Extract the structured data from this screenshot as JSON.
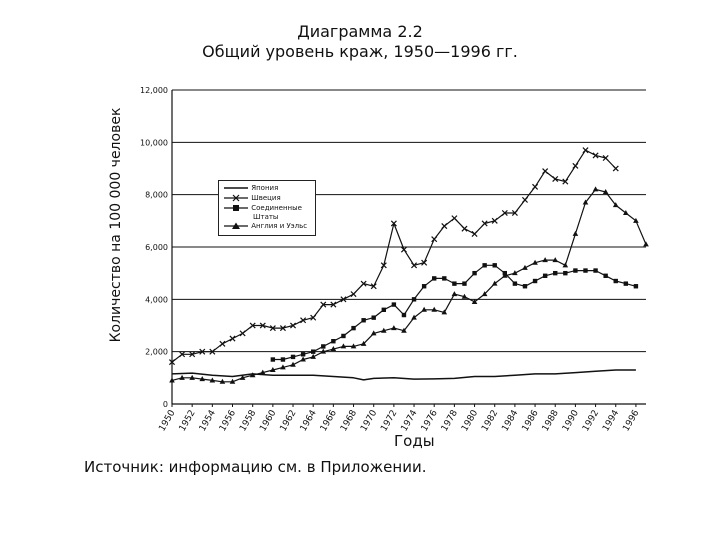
{
  "chart_data": {
    "type": "line",
    "title": "Диаграмма 2.2",
    "subtitle": "Общий уровень краж, 1950—1996 гг.",
    "xlabel": "Годы",
    "ylabel": "Количество на 100 000 человек",
    "ylim": [
      0,
      12000
    ],
    "xlim": [
      1950,
      1997
    ],
    "yticks": [
      "0",
      "2,000",
      "4,000",
      "6,000",
      "8,000",
      "10,000",
      "12,000"
    ],
    "ytick_values": [
      0,
      2000,
      4000,
      6000,
      8000,
      10000,
      12000
    ],
    "xticks": [
      "1950",
      "1952",
      "1954",
      "1956",
      "1958",
      "1960",
      "1962",
      "1964",
      "1966",
      "1968",
      "1970",
      "1972",
      "1974",
      "1976",
      "1978",
      "1980",
      "1982",
      "1984",
      "1986",
      "1988",
      "1990",
      "1992",
      "1994",
      "1996"
    ],
    "grid": "horizontal",
    "legend_position": "top-left",
    "series": [
      {
        "name": "Япония",
        "marker": "none",
        "x": [
          1950,
          1952,
          1954,
          1956,
          1958,
          1960,
          1962,
          1964,
          1966,
          1968,
          1969,
          1970,
          1972,
          1974,
          1976,
          1978,
          1980,
          1982,
          1984,
          1986,
          1988,
          1990,
          1992,
          1994,
          1996
        ],
        "y": [
          1150,
          1180,
          1100,
          1050,
          1150,
          1100,
          1100,
          1100,
          1050,
          1000,
          920,
          980,
          1000,
          950,
          960,
          980,
          1050,
          1050,
          1100,
          1150,
          1150,
          1200,
          1250,
          1300,
          1300
        ]
      },
      {
        "name": "Швеция",
        "marker": "x",
        "x": [
          1950,
          1951,
          1952,
          1953,
          1954,
          1955,
          1956,
          1957,
          1958,
          1959,
          1960,
          1961,
          1962,
          1963,
          1964,
          1965,
          1966,
          1967,
          1968,
          1969,
          1970,
          1971,
          1972,
          1973,
          1974,
          1975,
          1976,
          1977,
          1978,
          1979,
          1980,
          1981,
          1982,
          1983,
          1984,
          1985,
          1986,
          1987,
          1988,
          1989,
          1990,
          1991,
          1992,
          1993,
          1994
        ],
        "y": [
          1600,
          1900,
          1900,
          2000,
          2000,
          2300,
          2500,
          2700,
          3000,
          3000,
          2900,
          2900,
          3000,
          3200,
          3300,
          3800,
          3800,
          4000,
          4200,
          4600,
          4500,
          5300,
          6900,
          5900,
          5300,
          5400,
          6300,
          6800,
          7100,
          6700,
          6500,
          6900,
          7000,
          7300,
          7300,
          7800,
          8300,
          8900,
          8600,
          8500,
          9100,
          9700,
          9500,
          9400,
          9000
        ]
      },
      {
        "name": "Соединенные Штаты",
        "marker": "square",
        "x": [
          1960,
          1961,
          1962,
          1963,
          1964,
          1965,
          1966,
          1967,
          1968,
          1969,
          1970,
          1971,
          1972,
          1973,
          1974,
          1975,
          1976,
          1977,
          1978,
          1979,
          1980,
          1981,
          1982,
          1983,
          1984,
          1985,
          1986,
          1987,
          1988,
          1989,
          1990,
          1991,
          1992,
          1993,
          1994,
          1995,
          1996
        ],
        "y": [
          1700,
          1700,
          1800,
          1900,
          2000,
          2200,
          2400,
          2600,
          2900,
          3200,
          3300,
          3600,
          3800,
          3400,
          4000,
          4500,
          4800,
          4800,
          4600,
          4600,
          5000,
          5300,
          5300,
          5000,
          4600,
          4500,
          4700,
          4900,
          5000,
          5000,
          5100,
          5100,
          5100,
          4900,
          4700,
          4600,
          4500
        ]
      },
      {
        "name": "Англия и Уэльс",
        "marker": "triangle",
        "x": [
          1950,
          1951,
          1952,
          1953,
          1954,
          1955,
          1956,
          1957,
          1958,
          1959,
          1960,
          1961,
          1962,
          1963,
          1964,
          1965,
          1966,
          1967,
          1968,
          1969,
          1970,
          1971,
          1972,
          1973,
          1974,
          1975,
          1976,
          1977,
          1978,
          1979,
          1980,
          1981,
          1982,
          1983,
          1984,
          1985,
          1986,
          1987,
          1988,
          1989,
          1990,
          1991,
          1992,
          1993,
          1994,
          1995,
          1996,
          1997
        ],
        "y": [
          900,
          1000,
          1000,
          950,
          900,
          850,
          850,
          1000,
          1100,
          1200,
          1300,
          1400,
          1500,
          1700,
          1800,
          2000,
          2100,
          2200,
          2200,
          2300,
          2700,
          2800,
          2900,
          2800,
          3300,
          3600,
          3600,
          3500,
          4200,
          4100,
          3900,
          4200,
          4600,
          4900,
          5000,
          5200,
          5400,
          5500,
          5500,
          5300,
          6500,
          7700,
          8200,
          8100,
          7600,
          7300,
          7000,
          6100
        ]
      }
    ]
  },
  "legend": {
    "japan": "Япония",
    "sweden": "Швеция",
    "usa_line1": "Соединенные",
    "usa_line2": "Штаты",
    "england": "Англия и Уэльс"
  },
  "source": "Источник: информацию см. в Приложении."
}
